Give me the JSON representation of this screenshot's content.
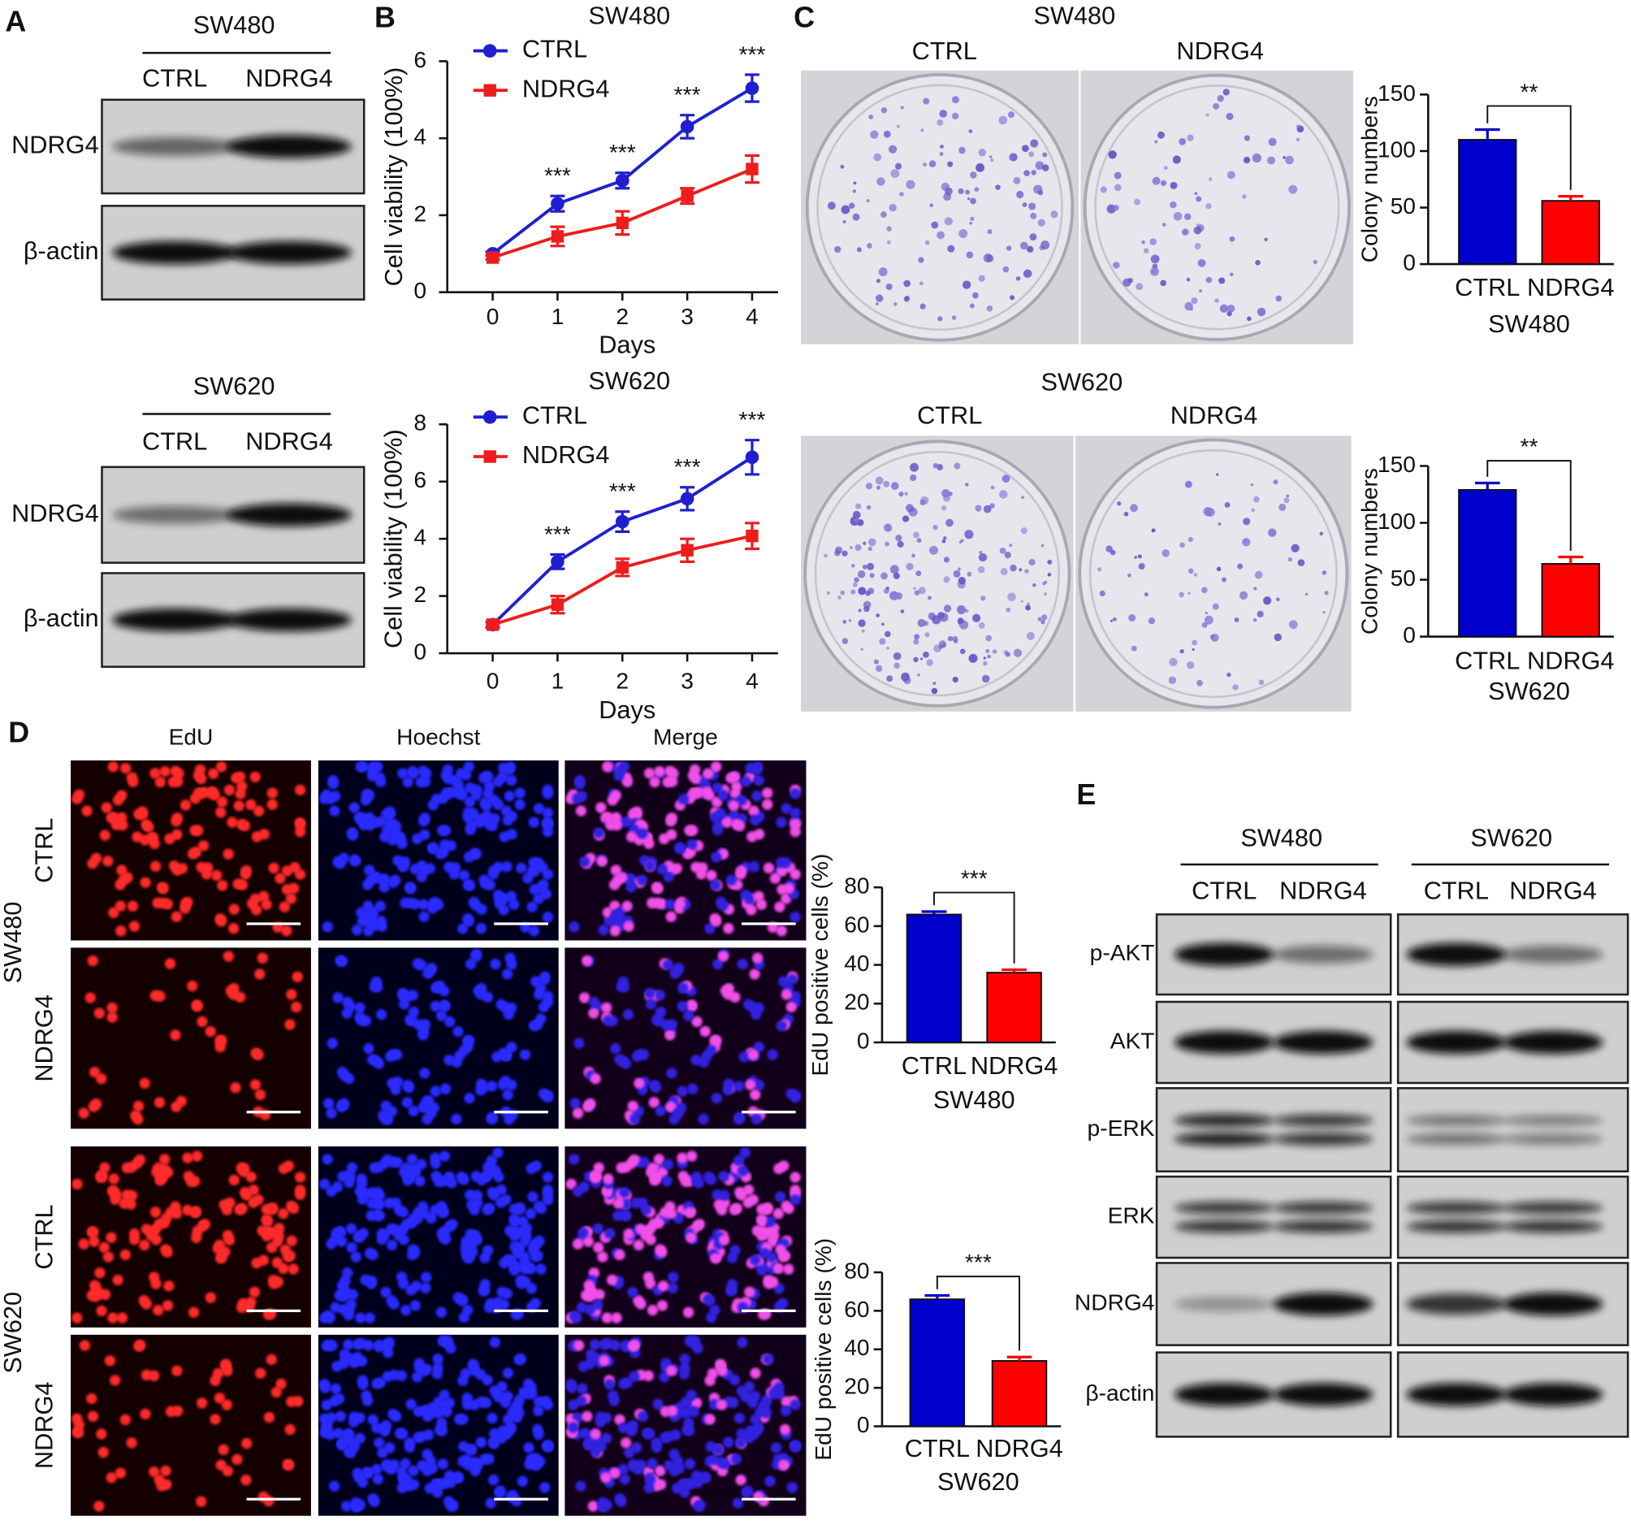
{
  "panel_labels": [
    "A",
    "B",
    "C",
    "D",
    "E"
  ],
  "blots_a": [
    {
      "cell": "SW480",
      "lanes": [
        "CTRL",
        "NDRG4"
      ],
      "rows": [
        "NDRG4",
        "β-actin"
      ]
    },
    {
      "cell": "SW620",
      "lanes": [
        "CTRL",
        "NDRG4"
      ],
      "rows": [
        "NDRG4",
        "β-actin"
      ]
    }
  ],
  "colony_c": [
    {
      "title": "SW480",
      "lanes": [
        "CTRL",
        "NDRG4"
      ]
    },
    {
      "title": "SW620",
      "lanes": [
        "CTRL",
        "NDRG4"
      ]
    }
  ],
  "edu_d": {
    "columns": [
      "EdU",
      "Hoechst",
      "Merge"
    ],
    "groups": [
      {
        "cell": "SW480",
        "rows": [
          "CTRL",
          "NDRG4"
        ]
      },
      {
        "cell": "SW620",
        "rows": [
          "CTRL",
          "NDRG4"
        ]
      }
    ]
  },
  "blots_e": {
    "groups": [
      {
        "cell": "SW480",
        "lanes": [
          "CTRL",
          "NDRG4"
        ]
      },
      {
        "cell": "SW620",
        "lanes": [
          "CTRL",
          "NDRG4"
        ]
      }
    ],
    "rows": [
      "p-AKT",
      "AKT",
      "p-ERK",
      "ERK",
      "NDRG4",
      "β-actin"
    ]
  },
  "chart_data": [
    {
      "type": "line",
      "title": "SW480",
      "xlabel": "Days",
      "ylabel": "Cell viability (100%)",
      "x": [
        0,
        1,
        2,
        3,
        4
      ],
      "xlim": [
        -0.7,
        4.4
      ],
      "xticks": [
        0,
        1,
        2,
        3,
        4
      ],
      "ylim": [
        0,
        6
      ],
      "yticks": [
        0,
        2,
        4,
        6
      ],
      "legend": "upper left",
      "series": [
        {
          "name": "CTRL",
          "color": "#1f1fd0",
          "marker": "circle",
          "values": [
            1.0,
            2.3,
            2.9,
            4.3,
            5.3
          ],
          "errors": [
            0.05,
            0.2,
            0.2,
            0.3,
            0.35
          ]
        },
        {
          "name": "NDRG4",
          "color": "#ee1c1c",
          "marker": "square",
          "values": [
            0.9,
            1.45,
            1.8,
            2.5,
            3.2
          ],
          "errors": [
            0.05,
            0.25,
            0.3,
            0.2,
            0.35
          ]
        }
      ],
      "annotations": [
        {
          "x": 1,
          "text": "***"
        },
        {
          "x": 2,
          "text": "***"
        },
        {
          "x": 3,
          "text": "***"
        },
        {
          "x": 4,
          "text": "***"
        }
      ]
    },
    {
      "type": "line",
      "title": "SW620",
      "xlabel": "Days",
      "ylabel": "Cell viability (100%)",
      "x": [
        0,
        1,
        2,
        3,
        4
      ],
      "xlim": [
        -0.7,
        4.4
      ],
      "xticks": [
        0,
        1,
        2,
        3,
        4
      ],
      "ylim": [
        0,
        8
      ],
      "yticks": [
        0,
        2,
        4,
        6,
        8
      ],
      "legend": "upper left",
      "series": [
        {
          "name": "CTRL",
          "color": "#1f1fd0",
          "marker": "circle",
          "values": [
            1.0,
            3.2,
            4.6,
            5.4,
            6.85
          ],
          "errors": [
            0.1,
            0.25,
            0.35,
            0.4,
            0.6
          ]
        },
        {
          "name": "NDRG4",
          "color": "#ee1c1c",
          "marker": "square",
          "values": [
            1.0,
            1.7,
            3.0,
            3.6,
            4.1
          ],
          "errors": [
            0.1,
            0.3,
            0.3,
            0.4,
            0.45
          ]
        }
      ],
      "annotations": [
        {
          "x": 1,
          "text": "***"
        },
        {
          "x": 2,
          "text": "***"
        },
        {
          "x": 3,
          "text": "***"
        },
        {
          "x": 4,
          "text": "***"
        }
      ]
    },
    {
      "type": "bar",
      "categories": [
        "CTRL",
        "NDRG4"
      ],
      "values": [
        110,
        56
      ],
      "errors": [
        9,
        4
      ],
      "colors": [
        "#0000cc",
        "#ff0000"
      ],
      "xlabel": "SW480",
      "ylabel": "Colony numbers",
      "ylim": [
        0,
        150
      ],
      "yticks": [
        0,
        50,
        100,
        150
      ],
      "significance": "**"
    },
    {
      "type": "bar",
      "categories": [
        "CTRL",
        "NDRG4"
      ],
      "values": [
        129,
        64
      ],
      "errors": [
        6,
        6
      ],
      "colors": [
        "#0000cc",
        "#ff0000"
      ],
      "xlabel": "SW620",
      "ylabel": "Colony numbers",
      "ylim": [
        0,
        150
      ],
      "yticks": [
        0,
        50,
        100,
        150
      ],
      "significance": "**"
    },
    {
      "type": "bar",
      "categories": [
        "CTRL",
        "NDRG4"
      ],
      "values": [
        66,
        36
      ],
      "errors": [
        1.5,
        1.5
      ],
      "colors": [
        "#0000cc",
        "#ff0000"
      ],
      "xlabel": "SW480",
      "ylabel": "EdU positive cells (%)",
      "ylim": [
        0,
        80
      ],
      "yticks": [
        0,
        20,
        40,
        60,
        80
      ],
      "significance": "***"
    },
    {
      "type": "bar",
      "categories": [
        "CTRL",
        "NDRG4"
      ],
      "values": [
        66,
        34
      ],
      "errors": [
        2,
        2
      ],
      "colors": [
        "#0000cc",
        "#ff0000"
      ],
      "xlabel": "SW620",
      "ylabel": "EdU positive cells (%)",
      "ylim": [
        0,
        80
      ],
      "yticks": [
        0,
        20,
        40,
        60,
        80
      ],
      "significance": "***"
    }
  ]
}
